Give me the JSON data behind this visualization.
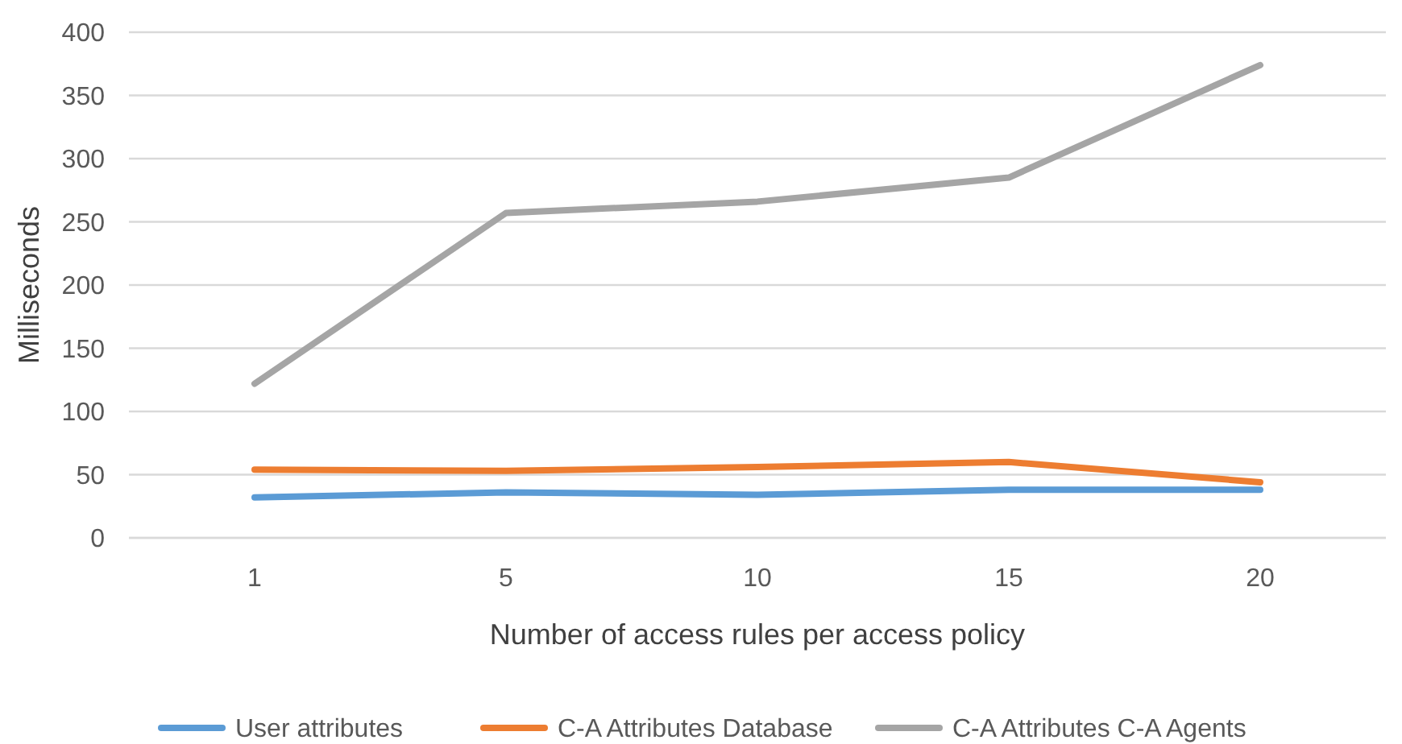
{
  "chart_data": {
    "type": "line",
    "xlabel": "Number of access rules per access policy",
    "ylabel": "Milliseconds",
    "categories": [
      "1",
      "5",
      "10",
      "15",
      "20"
    ],
    "series": [
      {
        "name": "User attributes",
        "color": "#5b9bd5",
        "values": [
          32,
          36,
          34,
          38,
          38
        ]
      },
      {
        "name": "C-A Attributes Database",
        "color": "#ed7d31",
        "values": [
          54,
          53,
          56,
          60,
          44
        ]
      },
      {
        "name": "C-A Attributes C-A Agents",
        "color": "#a5a5a5",
        "values": [
          122,
          257,
          266,
          285,
          374
        ]
      }
    ],
    "ylim": [
      0,
      400
    ],
    "yticks": [
      0,
      50,
      100,
      150,
      200,
      250,
      300,
      350,
      400
    ],
    "grid": "y",
    "legend": "bottom",
    "marker": "none",
    "line_style": "solid"
  }
}
